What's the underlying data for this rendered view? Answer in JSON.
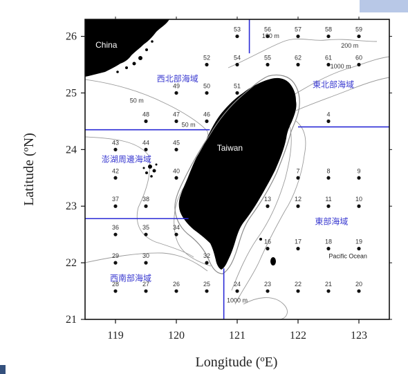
{
  "map": {
    "x_axis_title": "Longitude (ºE)",
    "y_axis_title": "Latitude (ºN)",
    "x_ticks": [
      {
        "value": 119,
        "label": "119"
      },
      {
        "value": 120,
        "label": "120"
      },
      {
        "value": 121,
        "label": "121"
      },
      {
        "value": 122,
        "label": "122"
      },
      {
        "value": 123,
        "label": "123"
      }
    ],
    "y_ticks": [
      {
        "value": 21,
        "label": "21"
      },
      {
        "value": 22,
        "label": "22"
      },
      {
        "value": 23,
        "label": "23"
      },
      {
        "value": 24,
        "label": "24"
      },
      {
        "value": 25,
        "label": "25"
      },
      {
        "value": 26,
        "label": "26"
      }
    ],
    "extent": {
      "lon": [
        118.5,
        123.5
      ],
      "lat": [
        21.0,
        26.3
      ]
    },
    "place_labels": [
      {
        "text": "China",
        "lon": 118.85,
        "lat": 25.8,
        "style": "white"
      },
      {
        "text": "Taiwan",
        "lon": 120.88,
        "lat": 23.98,
        "style": "white"
      },
      {
        "text": "Pacific Ocean",
        "lon": 122.82,
        "lat": 22.08,
        "style": "dark"
      }
    ],
    "region_labels": [
      {
        "text": "西北部海域",
        "lon": 120.02,
        "lat": 25.2
      },
      {
        "text": "東北部海域",
        "lon": 122.58,
        "lat": 25.1
      },
      {
        "text": "澎湖周邊海域",
        "lon": 119.18,
        "lat": 23.78
      },
      {
        "text": "東部海域",
        "lon": 122.55,
        "lat": 22.68
      },
      {
        "text": "西南部海域",
        "lon": 119.25,
        "lat": 21.68
      }
    ],
    "contour_labels": [
      {
        "text": "100 m",
        "lon": 121.55,
        "lat": 25.97
      },
      {
        "text": "200 m",
        "lon": 122.85,
        "lat": 25.8
      },
      {
        "text": "1000 m",
        "lon": 122.7,
        "lat": 25.43
      },
      {
        "text": "50 m",
        "lon": 119.35,
        "lat": 24.83
      },
      {
        "text": "50 m",
        "lon": 120.2,
        "lat": 24.4
      },
      {
        "text": "1000 m",
        "lon": 121.0,
        "lat": 21.3
      }
    ],
    "region_boundaries": [
      {
        "from": [
          121.2,
          26.3
        ],
        "to": [
          121.2,
          25.7
        ]
      },
      {
        "from": [
          118.5,
          24.35
        ],
        "to": [
          120.55,
          24.35
        ]
      },
      {
        "from": [
          122.0,
          24.4
        ],
        "to": [
          123.5,
          24.4
        ]
      },
      {
        "from": [
          118.5,
          22.78
        ],
        "to": [
          120.2,
          22.78
        ]
      },
      {
        "from": [
          120.78,
          21.9
        ],
        "to": [
          120.78,
          21.0
        ]
      }
    ],
    "stations": [
      {
        "id": "53",
        "lon": 121.0,
        "lat": 26.0
      },
      {
        "id": "56",
        "lon": 121.5,
        "lat": 26.0
      },
      {
        "id": "57",
        "lon": 122.0,
        "lat": 26.0
      },
      {
        "id": "58",
        "lon": 122.5,
        "lat": 26.0
      },
      {
        "id": "59",
        "lon": 123.0,
        "lat": 26.0
      },
      {
        "id": "52",
        "lon": 120.5,
        "lat": 25.5
      },
      {
        "id": "54",
        "lon": 121.0,
        "lat": 25.5
      },
      {
        "id": "55",
        "lon": 121.5,
        "lat": 25.5
      },
      {
        "id": "62",
        "lon": 122.0,
        "lat": 25.5
      },
      {
        "id": "61",
        "lon": 122.5,
        "lat": 25.5
      },
      {
        "id": "60",
        "lon": 123.0,
        "lat": 25.5
      },
      {
        "id": "49",
        "lon": 120.0,
        "lat": 25.0
      },
      {
        "id": "50",
        "lon": 120.5,
        "lat": 25.0
      },
      {
        "id": "51",
        "lon": 121.0,
        "lat": 25.0
      },
      {
        "id": "48",
        "lon": 119.5,
        "lat": 24.5
      },
      {
        "id": "47",
        "lon": 120.0,
        "lat": 24.5
      },
      {
        "id": "46",
        "lon": 120.5,
        "lat": 24.5
      },
      {
        "id": "4",
        "lon": 122.5,
        "lat": 24.5
      },
      {
        "id": "43",
        "lon": 119.0,
        "lat": 24.0
      },
      {
        "id": "44",
        "lon": 119.5,
        "lat": 24.0
      },
      {
        "id": "45",
        "lon": 120.0,
        "lat": 24.0
      },
      {
        "id": "7",
        "lon": 122.0,
        "lat": 23.5
      },
      {
        "id": "8",
        "lon": 122.5,
        "lat": 23.5
      },
      {
        "id": "9",
        "lon": 123.0,
        "lat": 23.5
      },
      {
        "id": "42",
        "lon": 119.0,
        "lat": 23.5
      },
      {
        "id": "40",
        "lon": 120.0,
        "lat": 23.5
      },
      {
        "id": "37",
        "lon": 119.0,
        "lat": 23.0
      },
      {
        "id": "38",
        "lon": 119.5,
        "lat": 23.0
      },
      {
        "id": "13",
        "lon": 121.5,
        "lat": 23.0
      },
      {
        "id": "12",
        "lon": 122.0,
        "lat": 23.0
      },
      {
        "id": "11",
        "lon": 122.5,
        "lat": 23.0
      },
      {
        "id": "10",
        "lon": 123.0,
        "lat": 23.0
      },
      {
        "id": "36",
        "lon": 119.0,
        "lat": 22.5
      },
      {
        "id": "35",
        "lon": 119.5,
        "lat": 22.5
      },
      {
        "id": "34",
        "lon": 120.0,
        "lat": 22.5
      },
      {
        "id": "16",
        "lon": 121.5,
        "lat": 22.25
      },
      {
        "id": "17",
        "lon": 122.0,
        "lat": 22.25
      },
      {
        "id": "18",
        "lon": 122.5,
        "lat": 22.25
      },
      {
        "id": "19",
        "lon": 123.0,
        "lat": 22.25
      },
      {
        "id": "29",
        "lon": 119.0,
        "lat": 22.0
      },
      {
        "id": "30",
        "lon": 119.5,
        "lat": 22.0
      },
      {
        "id": "32",
        "lon": 120.5,
        "lat": 22.0
      },
      {
        "id": "28",
        "lon": 119.0,
        "lat": 21.5
      },
      {
        "id": "27",
        "lon": 119.5,
        "lat": 21.5
      },
      {
        "id": "26",
        "lon": 120.0,
        "lat": 21.5
      },
      {
        "id": "25",
        "lon": 120.5,
        "lat": 21.5
      },
      {
        "id": "24",
        "lon": 121.0,
        "lat": 21.5
      },
      {
        "id": "23",
        "lon": 121.5,
        "lat": 21.5
      },
      {
        "id": "22",
        "lon": 122.0,
        "lat": 21.5
      },
      {
        "id": "21",
        "lon": 122.5,
        "lat": 21.5
      },
      {
        "id": "20",
        "lon": 123.0,
        "lat": 21.5
      }
    ],
    "colors": {
      "land": "#000000",
      "boundary": "#2a2ad6",
      "region_label": "#3a3ad0",
      "contour": "#9a9a9a",
      "frame": "#111111"
    }
  }
}
